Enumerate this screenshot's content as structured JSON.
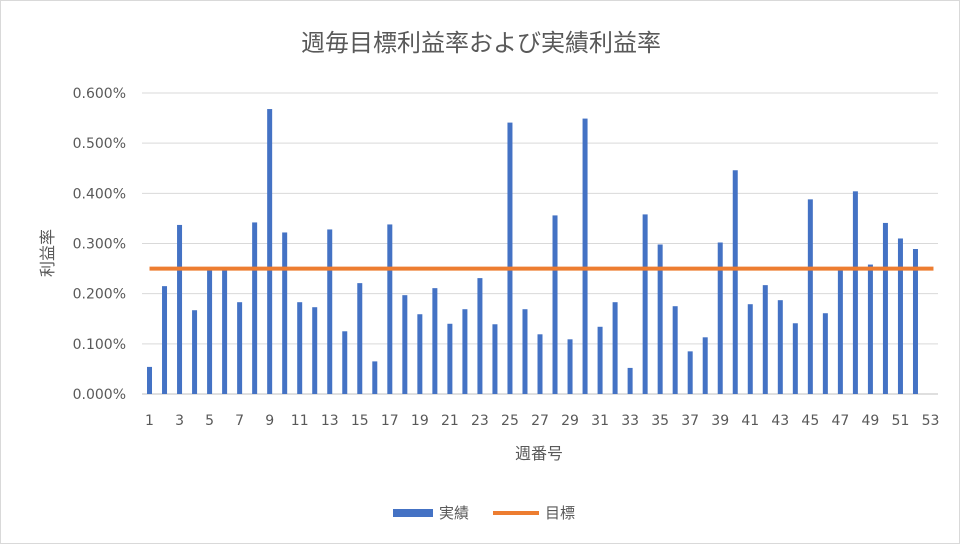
{
  "chart_data": {
    "type": "bar",
    "title": "週毎目標利益率および実績利益率",
    "xlabel": "週番号",
    "ylabel": "利益率",
    "ylim": [
      0,
      0.006
    ],
    "yticks": [
      "0.000%",
      "0.100%",
      "0.200%",
      "0.300%",
      "0.400%",
      "0.500%",
      "0.600%"
    ],
    "xtick_labels": [
      "1",
      "3",
      "5",
      "7",
      "9",
      "11",
      "13",
      "15",
      "17",
      "19",
      "21",
      "23",
      "25",
      "27",
      "29",
      "31",
      "33",
      "35",
      "37",
      "39",
      "41",
      "43",
      "45",
      "47",
      "49",
      "51",
      "53"
    ],
    "grid": true,
    "legend_position": "bottom",
    "x_range": [
      1,
      53
    ],
    "series": [
      {
        "name": "実績",
        "type": "bar",
        "color": "#4472C4",
        "x": [
          1,
          2,
          3,
          4,
          5,
          6,
          7,
          8,
          9,
          10,
          11,
          12,
          13,
          14,
          15,
          16,
          17,
          18,
          19,
          20,
          21,
          22,
          23,
          24,
          25,
          26,
          27,
          28,
          29,
          30,
          31,
          32,
          33,
          34,
          35,
          36,
          37,
          38,
          39,
          40,
          41,
          42,
          43,
          44,
          45,
          46,
          47,
          48,
          49,
          50,
          51,
          52
        ],
        "values": [
          0.00054,
          0.00215,
          0.00337,
          0.00167,
          0.0025,
          0.0025,
          0.00183,
          0.00342,
          0.00568,
          0.00322,
          0.00183,
          0.00173,
          0.00328,
          0.00125,
          0.00221,
          0.00065,
          0.00338,
          0.00197,
          0.00159,
          0.00211,
          0.0014,
          0.00169,
          0.00231,
          0.00139,
          0.00541,
          0.00169,
          0.00119,
          0.00356,
          0.00109,
          0.00549,
          0.00134,
          0.00183,
          0.00052,
          0.00358,
          0.00298,
          0.00175,
          0.00085,
          0.00113,
          0.00302,
          0.00446,
          0.00179,
          0.00217,
          0.00187,
          0.00141,
          0.00388,
          0.00161,
          0.0025,
          0.00404,
          0.00258,
          0.00341,
          0.0031,
          0.00289
        ]
      },
      {
        "name": "目標",
        "type": "line",
        "color": "#ED7D31",
        "value": 0.0025
      }
    ]
  }
}
